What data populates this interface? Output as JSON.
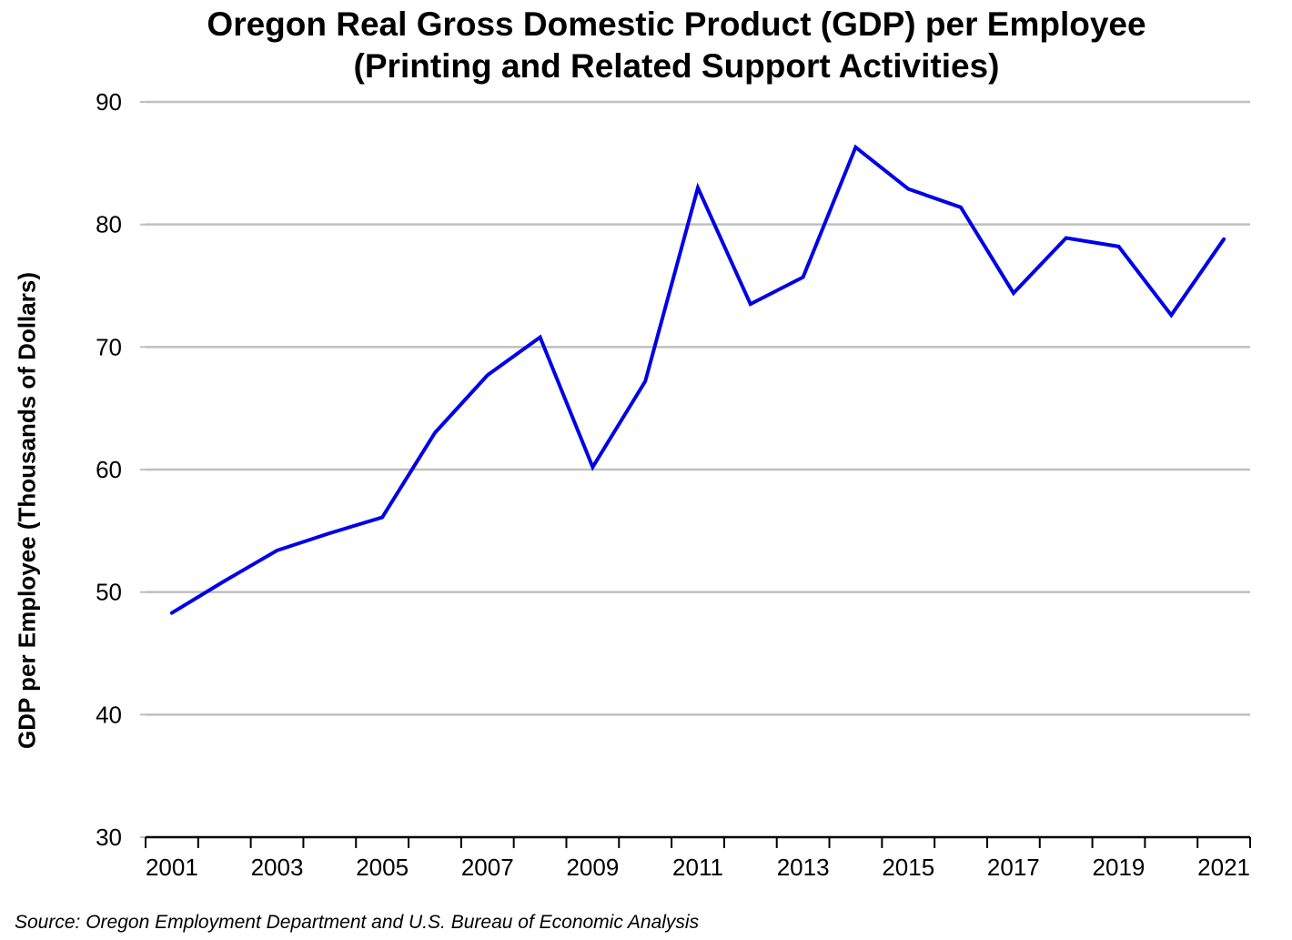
{
  "chart_data": {
    "type": "line",
    "title": "Oregon Real Gross Domestic Product (GDP) per Employee",
    "subtitle": "(Printing and Related Support Activities)",
    "ylabel": "GDP per Employee (Thousands of Dollars)",
    "xlabel": "",
    "ylim": [
      30,
      90
    ],
    "yticks": [
      30,
      40,
      50,
      60,
      70,
      80,
      90
    ],
    "xtick_labels": [
      "2001",
      "2003",
      "2005",
      "2007",
      "2009",
      "2011",
      "2013",
      "2015",
      "2017",
      "2019",
      "2021"
    ],
    "grid": "horizontal",
    "line_color": "#0000e6",
    "x": [
      2001,
      2002,
      2003,
      2004,
      2005,
      2006,
      2007,
      2008,
      2009,
      2010,
      2011,
      2012,
      2013,
      2014,
      2015,
      2016,
      2017,
      2018,
      2019,
      2020,
      2021
    ],
    "series": [
      {
        "values": [
          48.3,
          50.9,
          53.4,
          54.8,
          56.1,
          63.0,
          67.7,
          70.8,
          60.2,
          67.2,
          83.0,
          73.5,
          75.7,
          86.3,
          82.9,
          81.4,
          74.4,
          78.9,
          78.2,
          72.6,
          78.8
        ]
      }
    ]
  },
  "source": "Source: Oregon Employment Department and U.S. Bureau of Economic Analysis"
}
